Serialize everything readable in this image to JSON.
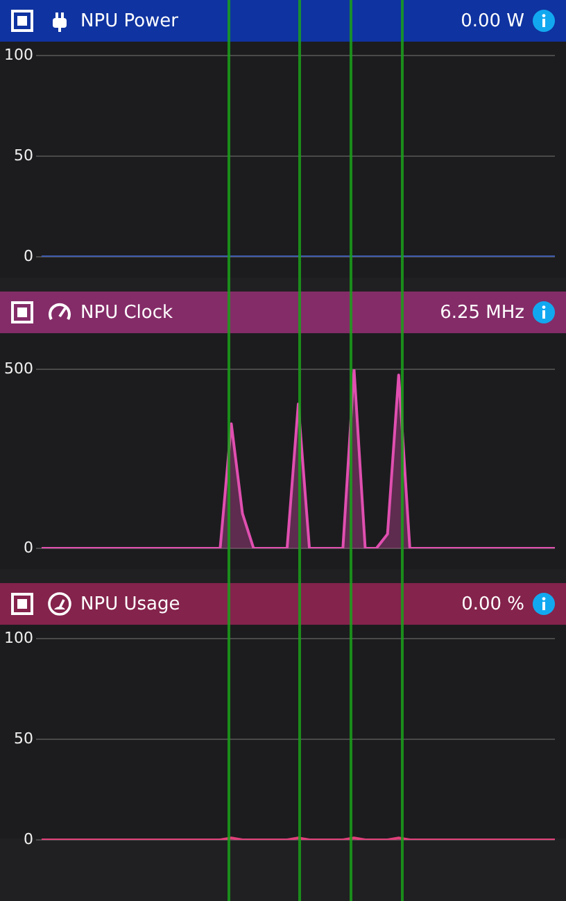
{
  "chart_data": [
    {
      "type": "line",
      "title": "NPU Power",
      "subtitle": "0.00 W",
      "categories": [
        null,
        null,
        null,
        null,
        null,
        null,
        null,
        null,
        null,
        null,
        null,
        null,
        null,
        null,
        null,
        null,
        null,
        null,
        null,
        null,
        null,
        null,
        null,
        null,
        null,
        null,
        null,
        null,
        null,
        null,
        null,
        null,
        null,
        null,
        null,
        null,
        null,
        null,
        null,
        null,
        null,
        null,
        null,
        null,
        null,
        null,
        null
      ],
      "series": [
        {
          "color": "#3f5bb0",
          "values": [
            0,
            0,
            0,
            0,
            0,
            0,
            0,
            0,
            0,
            0,
            0,
            0,
            0,
            0,
            0,
            0,
            0,
            0,
            0,
            0,
            0,
            0,
            0,
            0,
            0,
            0,
            0,
            0,
            0,
            0,
            0,
            0,
            0,
            0,
            0,
            0,
            0,
            0,
            0,
            0,
            0,
            0,
            0,
            0,
            0,
            0,
            0
          ]
        }
      ],
      "ylim": [
        0,
        100
      ],
      "yticks": [
        0,
        50,
        100
      ],
      "grid": "y",
      "tick_labels": "y"
    },
    {
      "type": "area",
      "title": "NPU Clock",
      "subtitle": "6.25 MHz",
      "categories": [
        null,
        null,
        null,
        null,
        null,
        null,
        null,
        null,
        null,
        null,
        null,
        null,
        null,
        null,
        null,
        null,
        null,
        null,
        null,
        null,
        null,
        null,
        null,
        null,
        null,
        null,
        null,
        null,
        null,
        null,
        null,
        null,
        null,
        null,
        null,
        null,
        null,
        null,
        null,
        null,
        null,
        null,
        null,
        null,
        null,
        null,
        null
      ],
      "series": [
        {
          "color": "#e04fb0",
          "values": [
            0,
            0,
            0,
            0,
            0,
            0,
            0,
            0,
            0,
            0,
            0,
            0,
            0,
            0,
            0,
            0,
            0,
            348,
            97,
            0,
            0,
            0,
            0,
            403,
            0,
            0,
            0,
            0,
            500,
            0,
            0,
            40,
            484,
            0,
            0,
            0,
            0,
            0,
            0,
            0,
            0,
            0,
            0,
            0,
            0,
            0,
            0
          ]
        }
      ],
      "ylim": [
        0,
        500
      ],
      "yticks": [
        0,
        500
      ],
      "grid": "y",
      "tick_labels": "y"
    },
    {
      "type": "area",
      "title": "NPU Usage",
      "subtitle": "0.00 %",
      "categories": [
        null,
        null,
        null,
        null,
        null,
        null,
        null,
        null,
        null,
        null,
        null,
        null,
        null,
        null,
        null,
        null,
        null,
        null,
        null,
        null,
        null,
        null,
        null,
        null,
        null,
        null,
        null,
        null,
        null,
        null,
        null,
        null,
        null,
        null,
        null,
        null,
        null,
        null,
        null,
        null,
        null,
        null,
        null,
        null,
        null,
        null,
        null
      ],
      "series": [
        {
          "color": "#e0407a",
          "values": [
            0,
            0,
            0,
            0,
            0,
            0,
            0,
            0,
            0,
            0,
            0,
            0,
            0,
            0,
            0,
            0,
            0,
            1,
            0,
            0,
            0,
            0,
            0,
            1,
            0,
            0,
            0,
            0,
            1,
            0,
            0,
            0,
            1,
            0,
            0,
            0,
            0,
            0,
            0,
            0,
            0,
            0,
            0,
            0,
            0,
            0,
            0
          ]
        }
      ],
      "ylim": [
        0,
        100
      ],
      "yticks": [
        0,
        50,
        100
      ],
      "grid": "y",
      "tick_labels": "y"
    }
  ]
}
